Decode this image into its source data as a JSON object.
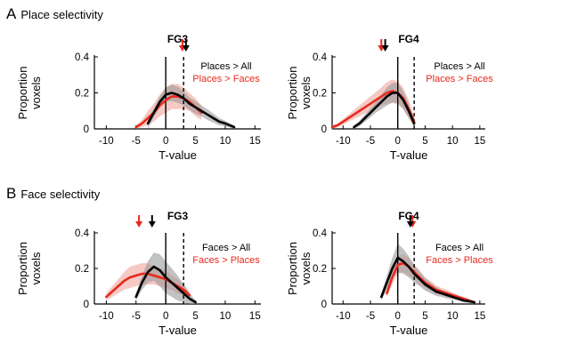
{
  "sections": [
    {
      "letter": "A",
      "title": "Place selectivity"
    },
    {
      "letter": "B",
      "title": "Face selectivity"
    }
  ],
  "colors": {
    "black_series": "#000000",
    "red_series": "#e8291c",
    "black_band": "#9a9a9a",
    "red_band": "#f0a59c"
  },
  "chart_data": [
    {
      "type": "line",
      "section": "A",
      "title": "FG3",
      "xlabel": "T-value",
      "ylabel": "Proportion voxels",
      "xlim": [
        -12,
        16
      ],
      "ylim": [
        0,
        0.4
      ],
      "xticks": [
        "-10",
        "-5",
        "0",
        "5",
        "10",
        "15"
      ],
      "yticks": [
        "0",
        "0.2",
        "0.4"
      ],
      "solid_line_x": 0,
      "dashed_line_x": 3,
      "grid": false,
      "legend_position": "top-right",
      "series": [
        {
          "name": "Places > All",
          "color": "black",
          "arrow_x": 3.4,
          "x": [
            -3,
            -2,
            -1,
            0,
            1,
            2,
            3,
            4,
            5,
            6,
            7,
            8,
            9,
            10,
            11.5
          ],
          "y": [
            0.03,
            0.09,
            0.15,
            0.19,
            0.2,
            0.19,
            0.17,
            0.14,
            0.12,
            0.1,
            0.08,
            0.06,
            0.04,
            0.03,
            0.01
          ],
          "band": [
            0.03,
            0.025,
            0.03,
            0.04,
            0.045,
            0.045,
            0.04,
            0.035,
            0.035,
            0.03,
            0.03,
            0.025,
            0.02,
            0.015,
            0.01
          ]
        },
        {
          "name": "Places > Faces",
          "color": "red",
          "arrow_x": 2.8,
          "x": [
            -5,
            -4,
            -3,
            -2,
            -1,
            0,
            1,
            2,
            3,
            4,
            5,
            6
          ],
          "y": [
            0.01,
            0.03,
            0.06,
            0.09,
            0.13,
            0.16,
            0.18,
            0.18,
            0.17,
            0.15,
            0.12,
            0.09
          ],
          "band": [
            0.01,
            0.02,
            0.04,
            0.05,
            0.06,
            0.07,
            0.07,
            0.07,
            0.06,
            0.05,
            0.05,
            0.04
          ]
        }
      ]
    },
    {
      "type": "line",
      "section": "A",
      "title": "FG4",
      "xlabel": "T-value",
      "ylabel": "Proportion voxels",
      "xlim": [
        -12,
        16
      ],
      "ylim": [
        0,
        0.4
      ],
      "xticks": [
        "-10",
        "-5",
        "0",
        "5",
        "10",
        "15"
      ],
      "yticks": [
        "0",
        "0.2",
        "0.4"
      ],
      "solid_line_x": 0,
      "dashed_line_x": 3,
      "grid": false,
      "legend_position": "top-right",
      "series": [
        {
          "name": "Places > All",
          "color": "black",
          "arrow_x": -2.3,
          "x": [
            -8,
            -7,
            -6,
            -5,
            -4,
            -3,
            -2,
            -1,
            0,
            1,
            2,
            3
          ],
          "y": [
            0.01,
            0.03,
            0.06,
            0.09,
            0.12,
            0.15,
            0.18,
            0.2,
            0.2,
            0.16,
            0.1,
            0.03
          ],
          "band": [
            0.01,
            0.015,
            0.02,
            0.025,
            0.03,
            0.04,
            0.05,
            0.055,
            0.055,
            0.05,
            0.04,
            0.02
          ]
        },
        {
          "name": "Places > Faces",
          "color": "red",
          "arrow_x": -3.0,
          "x": [
            -12,
            -11,
            -10,
            -9,
            -8,
            -7,
            -6,
            -5,
            -4,
            -3,
            -2,
            -1,
            0,
            1,
            2,
            3
          ],
          "y": [
            0.01,
            0.02,
            0.04,
            0.06,
            0.08,
            0.1,
            0.12,
            0.14,
            0.16,
            0.18,
            0.2,
            0.21,
            0.2,
            0.17,
            0.11,
            0.04
          ],
          "band": [
            0.01,
            0.01,
            0.015,
            0.02,
            0.025,
            0.03,
            0.035,
            0.04,
            0.045,
            0.05,
            0.06,
            0.065,
            0.065,
            0.06,
            0.05,
            0.03
          ]
        }
      ]
    },
    {
      "type": "line",
      "section": "B",
      "title": "FG3",
      "xlabel": "T-value",
      "ylabel": "Proportion voxels",
      "xlim": [
        -12,
        16
      ],
      "ylim": [
        0,
        0.4
      ],
      "xticks": [
        "-10",
        "-5",
        "0",
        "5",
        "10",
        "15"
      ],
      "yticks": [
        "0",
        "0.2",
        "0.4"
      ],
      "solid_line_x": 0,
      "dashed_line_x": 3,
      "grid": false,
      "legend_position": "top-right",
      "series": [
        {
          "name": "Faces > All",
          "color": "black",
          "arrow_x": -2.3,
          "x": [
            -5,
            -4,
            -3,
            -2,
            -1,
            0,
            1,
            2,
            3,
            4,
            5
          ],
          "y": [
            0.04,
            0.12,
            0.18,
            0.21,
            0.19,
            0.15,
            0.12,
            0.09,
            0.06,
            0.03,
            0.01
          ],
          "band": [
            0.02,
            0.04,
            0.06,
            0.08,
            0.09,
            0.09,
            0.08,
            0.07,
            0.05,
            0.03,
            0.01
          ]
        },
        {
          "name": "Faces > Places",
          "color": "red",
          "arrow_x": -4.5,
          "x": [
            -10,
            -9,
            -8,
            -7,
            -6,
            -5,
            -4,
            -3,
            -2,
            -1,
            0,
            1,
            2,
            3,
            4
          ],
          "y": [
            0.04,
            0.07,
            0.1,
            0.13,
            0.15,
            0.16,
            0.17,
            0.17,
            0.16,
            0.15,
            0.14,
            0.12,
            0.1,
            0.08,
            0.05
          ],
          "band": [
            0.02,
            0.03,
            0.04,
            0.05,
            0.06,
            0.06,
            0.06,
            0.06,
            0.05,
            0.05,
            0.05,
            0.04,
            0.04,
            0.03,
            0.02
          ]
        }
      ]
    },
    {
      "type": "line",
      "section": "B",
      "title": "FG4",
      "xlabel": "T-value",
      "ylabel": "Proportion voxels",
      "xlim": [
        -12,
        16
      ],
      "ylim": [
        0,
        0.4
      ],
      "xticks": [
        "-10",
        "-5",
        "0",
        "5",
        "10",
        "15"
      ],
      "yticks": [
        "0",
        "0.2",
        "0.4"
      ],
      "solid_line_x": 0,
      "dashed_line_x": 3,
      "grid": false,
      "legend_position": "top-right",
      "series": [
        {
          "name": "Faces > All",
          "color": "black",
          "arrow_x": 2.3,
          "x": [
            -3,
            -2,
            -1,
            0,
            1,
            2,
            3,
            4,
            5,
            6,
            7,
            8,
            9,
            10,
            11,
            12,
            14
          ],
          "y": [
            0.04,
            0.12,
            0.2,
            0.26,
            0.24,
            0.21,
            0.17,
            0.14,
            0.11,
            0.09,
            0.07,
            0.06,
            0.05,
            0.04,
            0.03,
            0.02,
            0.01
          ],
          "band": [
            0.02,
            0.04,
            0.06,
            0.08,
            0.07,
            0.06,
            0.05,
            0.04,
            0.035,
            0.03,
            0.025,
            0.02,
            0.02,
            0.015,
            0.01,
            0.01,
            0.005
          ]
        },
        {
          "name": "Faces > Places",
          "color": "red",
          "arrow_x": 2.7,
          "x": [
            -2,
            -1,
            0,
            1,
            2,
            3,
            4,
            5,
            6,
            7,
            8,
            9,
            10,
            11,
            12,
            14
          ],
          "y": [
            0.06,
            0.15,
            0.22,
            0.23,
            0.21,
            0.18,
            0.15,
            0.12,
            0.1,
            0.08,
            0.07,
            0.06,
            0.05,
            0.04,
            0.03,
            0.01
          ],
          "band": [
            0.02,
            0.04,
            0.05,
            0.05,
            0.05,
            0.04,
            0.04,
            0.03,
            0.03,
            0.025,
            0.02,
            0.02,
            0.015,
            0.01,
            0.01,
            0.005
          ]
        }
      ]
    }
  ]
}
